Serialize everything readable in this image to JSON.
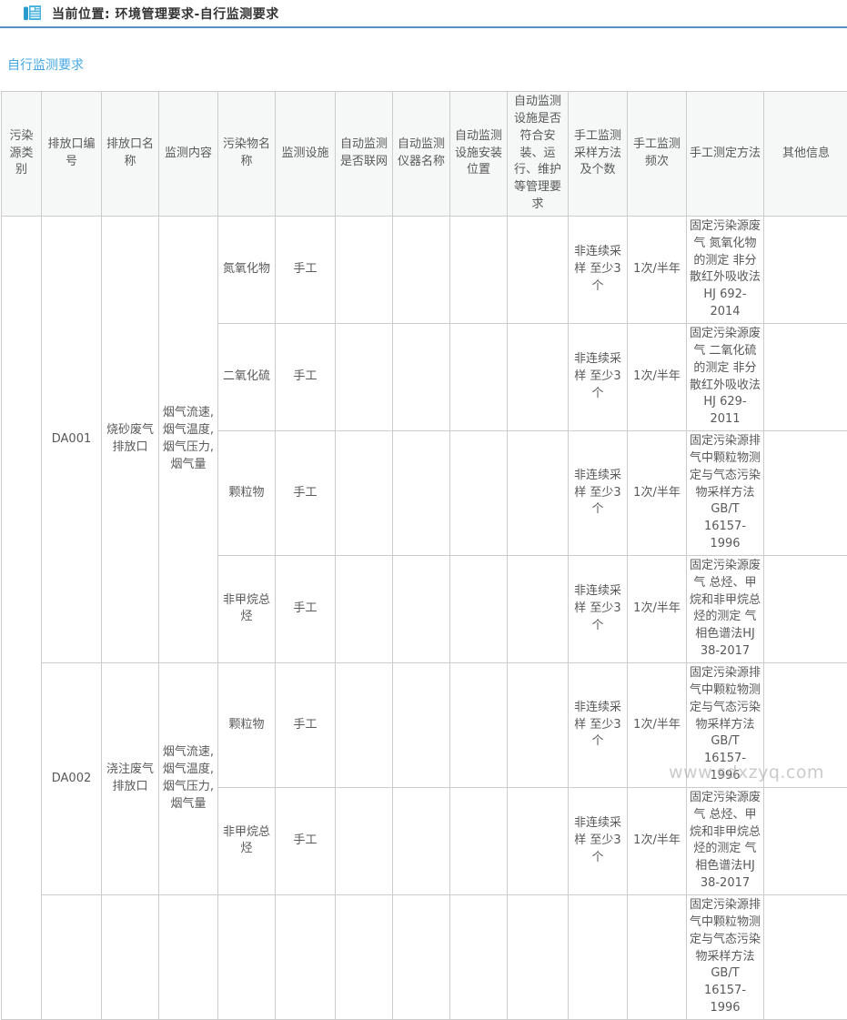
{
  "breadcrumb": "当前位置: 环境管理要求-自行监测要求",
  "page_title": "自行监测要求",
  "watermark": "www.sdxzyq.com",
  "colors": {
    "divider_blue": "#5590c5",
    "link_blue": "#45a7e2",
    "icon_blue_dark": "#2a9bcd",
    "icon_blue_light": "#4ab3e0",
    "table_border": "#cccccc",
    "header_bg": "#f6f7f7",
    "text_gray": "#595959"
  },
  "table": {
    "headers": [
      "污染源类别",
      "排放口编号",
      "排放口名称",
      "监测内容",
      "污染物名称",
      "监测设施",
      "自动监测是否联网",
      "自动监测仪器名称",
      "自动监测设施安装位置",
      "自动监测设施是否符合安装、运行、维护等管理要求",
      "手工监测采样方法及个数",
      "手工监测频次",
      "手工测定方法",
      "其他信息"
    ],
    "source_category": "",
    "groups": [
      {
        "outlet_id": "DA001",
        "outlet_name": "烧砂废气排放口",
        "monitor_content": "烟气流速,烟气温度,烟气压力,烟气量",
        "rows": [
          {
            "pollutant": "氮氧化物",
            "facility": "手工",
            "auto_networked": "",
            "auto_instrument": "",
            "auto_location": "",
            "auto_compliance": "",
            "manual_sampling": "非连续采样 至少3个",
            "manual_frequency": "1次/半年",
            "manual_method": "固定污染源废气 氮氧化物的测定 非分散红外吸收法 HJ 692-2014",
            "other": ""
          },
          {
            "pollutant": "二氧化硫",
            "facility": "手工",
            "auto_networked": "",
            "auto_instrument": "",
            "auto_location": "",
            "auto_compliance": "",
            "manual_sampling": "非连续采样 至少3个",
            "manual_frequency": "1次/半年",
            "manual_method": "固定污染源废气 二氧化硫的测定 非分散红外吸收法 HJ 629-2011",
            "other": ""
          },
          {
            "pollutant": "颗粒物",
            "facility": "手工",
            "auto_networked": "",
            "auto_instrument": "",
            "auto_location": "",
            "auto_compliance": "",
            "manual_sampling": "非连续采样 至少3个",
            "manual_frequency": "1次/半年",
            "manual_method": "固定污染源排气中颗粒物测定与气态污染物采样方法 GB/T 16157-1996",
            "other": ""
          },
          {
            "pollutant": "非甲烷总烃",
            "facility": "手工",
            "auto_networked": "",
            "auto_instrument": "",
            "auto_location": "",
            "auto_compliance": "",
            "manual_sampling": "非连续采样 至少3个",
            "manual_frequency": "1次/半年",
            "manual_method": "固定污染源废气 总烃、甲烷和非甲烷总烃的测定 气相色谱法HJ 38-2017",
            "other": ""
          }
        ]
      },
      {
        "outlet_id": "DA002",
        "outlet_name": "浇注废气排放口",
        "monitor_content": "烟气流速,烟气温度,烟气压力,烟气量",
        "rows": [
          {
            "pollutant": "颗粒物",
            "facility": "手工",
            "auto_networked": "",
            "auto_instrument": "",
            "auto_location": "",
            "auto_compliance": "",
            "manual_sampling": "非连续采样 至少3个",
            "manual_frequency": "1次/半年",
            "manual_method": "固定污染源排气中颗粒物测定与气态污染物采样方法 GB/T 16157-1996",
            "other": ""
          },
          {
            "pollutant": "非甲烷总烃",
            "facility": "手工",
            "auto_networked": "",
            "auto_instrument": "",
            "auto_location": "",
            "auto_compliance": "",
            "manual_sampling": "非连续采样 至少3个",
            "manual_frequency": "1次/半年",
            "manual_method": "固定污染源废气 总烃、甲烷和非甲烷总烃的测定 气相色谱法HJ 38-2017",
            "other": ""
          }
        ]
      },
      {
        "outlet_id": "",
        "outlet_name": "",
        "monitor_content": "",
        "rows": [
          {
            "pollutant": "",
            "facility": "",
            "auto_networked": "",
            "auto_instrument": "",
            "auto_location": "",
            "auto_compliance": "",
            "manual_sampling": "",
            "manual_frequency": "",
            "manual_method": "固定污染源排气中颗粒物测定与气态污染物采样方法 GB/T 16157-1996",
            "other": ""
          }
        ]
      }
    ]
  }
}
